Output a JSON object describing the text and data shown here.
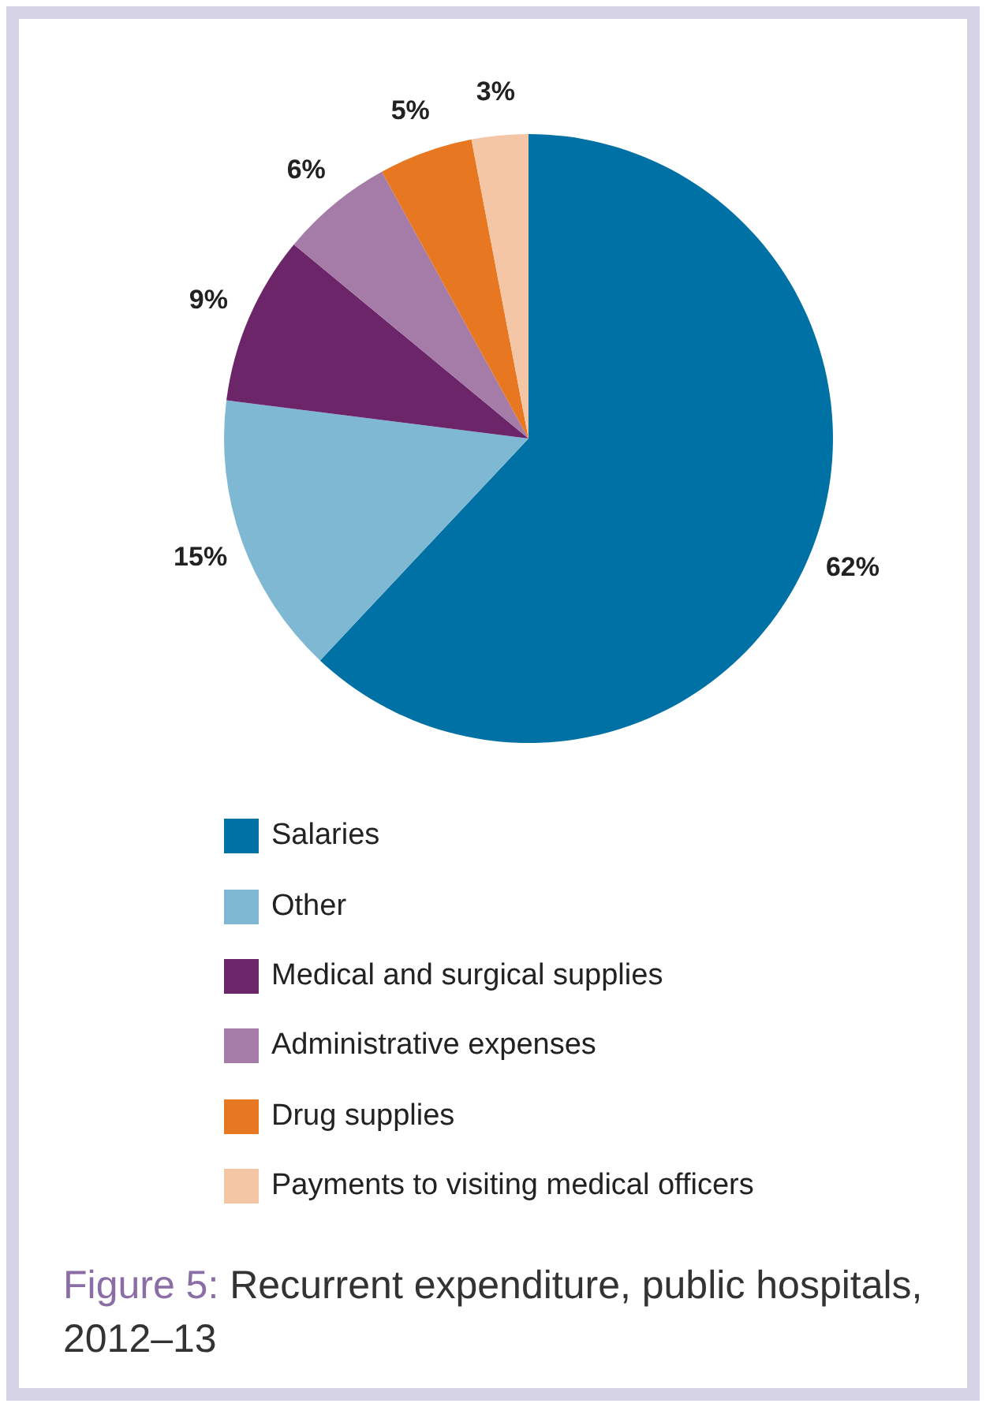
{
  "chart_data": {
    "type": "pie",
    "title": "Figure 5: Recurrent expenditure, public hospitals, 2012–13",
    "categories": [
      "Salaries",
      "Other",
      "Medical and surgical supplies",
      "Administrative expenses",
      "Drug supplies",
      "Payments to visiting medical officers"
    ],
    "values": [
      62,
      15,
      9,
      6,
      5,
      3
    ],
    "value_labels": [
      "62%",
      "15%",
      "9%",
      "6%",
      "5%",
      "3%"
    ],
    "colors": [
      "#0071a4",
      "#7fb8d3",
      "#6b2568",
      "#a57ba8",
      "#e87722",
      "#f5c6a5"
    ],
    "legend": "bottom"
  }
}
